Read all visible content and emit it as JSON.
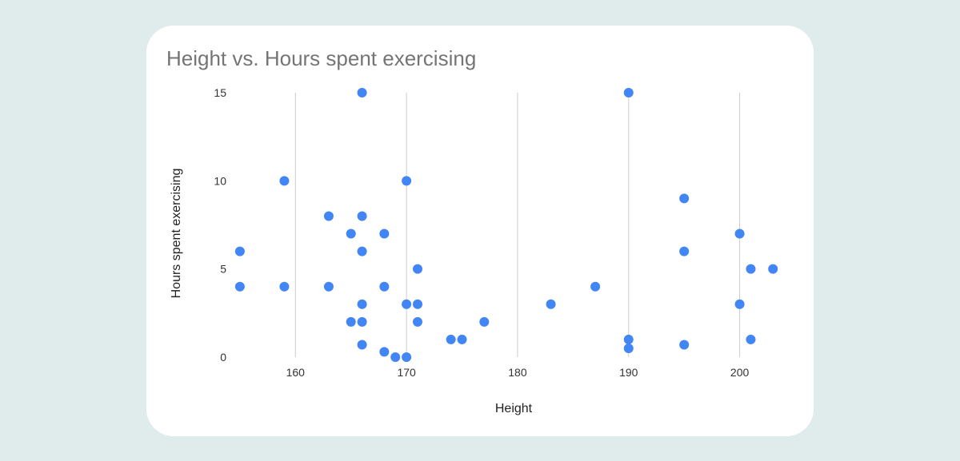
{
  "chart_data": {
    "type": "scatter",
    "title": "Height vs. Hours spent exercising",
    "xlabel": "Height",
    "ylabel": "Hours spent exercising",
    "xlim": [
      154,
      205
    ],
    "ylim": [
      0,
      15
    ],
    "x_ticks": [
      160,
      170,
      180,
      190,
      200
    ],
    "y_ticks": [
      0,
      5,
      10,
      15
    ],
    "grid": "vertical",
    "legend": "none",
    "point_color": "#4285f4",
    "points": [
      {
        "x": 155,
        "y": 6
      },
      {
        "x": 155,
        "y": 4
      },
      {
        "x": 159,
        "y": 10
      },
      {
        "x": 159,
        "y": 4
      },
      {
        "x": 163,
        "y": 8
      },
      {
        "x": 163,
        "y": 4
      },
      {
        "x": 165,
        "y": 7
      },
      {
        "x": 165,
        "y": 2
      },
      {
        "x": 166,
        "y": 15
      },
      {
        "x": 166,
        "y": 8
      },
      {
        "x": 166,
        "y": 6
      },
      {
        "x": 166,
        "y": 3
      },
      {
        "x": 166,
        "y": 2
      },
      {
        "x": 166,
        "y": 0.7
      },
      {
        "x": 168,
        "y": 7
      },
      {
        "x": 168,
        "y": 4
      },
      {
        "x": 168,
        "y": 0.3
      },
      {
        "x": 169,
        "y": 0
      },
      {
        "x": 170,
        "y": 10
      },
      {
        "x": 170,
        "y": 3
      },
      {
        "x": 170,
        "y": 0
      },
      {
        "x": 171,
        "y": 5
      },
      {
        "x": 171,
        "y": 3
      },
      {
        "x": 171,
        "y": 2
      },
      {
        "x": 174,
        "y": 1
      },
      {
        "x": 175,
        "y": 1
      },
      {
        "x": 177,
        "y": 2
      },
      {
        "x": 183,
        "y": 3
      },
      {
        "x": 187,
        "y": 4
      },
      {
        "x": 190,
        "y": 15
      },
      {
        "x": 190,
        "y": 1
      },
      {
        "x": 190,
        "y": 0.5
      },
      {
        "x": 195,
        "y": 9
      },
      {
        "x": 195,
        "y": 6
      },
      {
        "x": 195,
        "y": 0.7
      },
      {
        "x": 200,
        "y": 7
      },
      {
        "x": 200,
        "y": 3
      },
      {
        "x": 201,
        "y": 5
      },
      {
        "x": 201,
        "y": 1
      },
      {
        "x": 203,
        "y": 5
      }
    ]
  }
}
